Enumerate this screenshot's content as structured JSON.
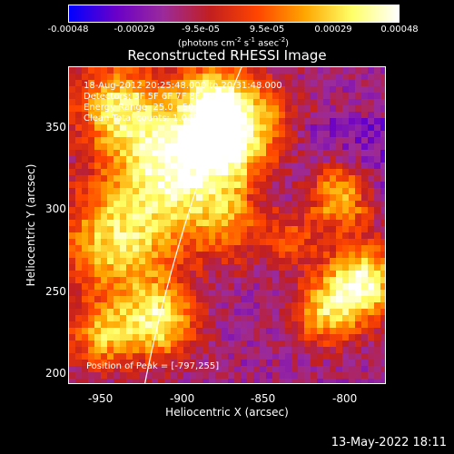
{
  "colorbar": {
    "ticks": [
      "-0.00048",
      "-0.00029",
      "-9.5e-05",
      "9.5e-05",
      "0.00029",
      "0.00048"
    ],
    "unit_prefix": "(photons cm",
    "unit_exp1": "-2",
    "unit_mid": " s",
    "unit_exp2": "-1",
    "unit_mid2": " asec",
    "unit_exp3": "-2",
    "unit_suffix": ")",
    "colors": [
      "#0000ff",
      "#6a00c8",
      "#9b2a9b",
      "#c21f1f",
      "#ff4500",
      "#ffa500",
      "#ffff66",
      "#ffffff"
    ]
  },
  "chart_data": {
    "type": "heatmap",
    "title": "Reconstructed RHESSI Image",
    "xlabel": "Heliocentric X (arcsec)",
    "ylabel": "Heliocentric Y (arcsec)",
    "xlim": [
      -970,
      -775
    ],
    "ylim": [
      195,
      380
    ],
    "x_ticks": [
      "-950",
      "-900",
      "-850",
      "-800"
    ],
    "x_tick_values": [
      -950,
      -900,
      -850,
      -800
    ],
    "y_ticks": [
      "200",
      "250",
      "300",
      "350"
    ],
    "y_tick_values": [
      200,
      250,
      300,
      350
    ],
    "value_range": [
      -0.00048,
      0.00048
    ],
    "info_lines": [
      "18-Aug-2012 20:25:48.000 to 20:31:48.000",
      "Detectors: 3F 5F 6F 7F 8F, Att 0",
      "Energy Range: 25.0 - 50.0 keV",
      "Clean    Total counts: 1.06E+05"
    ],
    "peak_label": "Position of Peak = [-797,255]",
    "peak_position": [
      -797,
      255
    ],
    "limb_line_color": "#ffffff"
  },
  "footer": {
    "timestamp": "13-May-2022 18:11"
  }
}
